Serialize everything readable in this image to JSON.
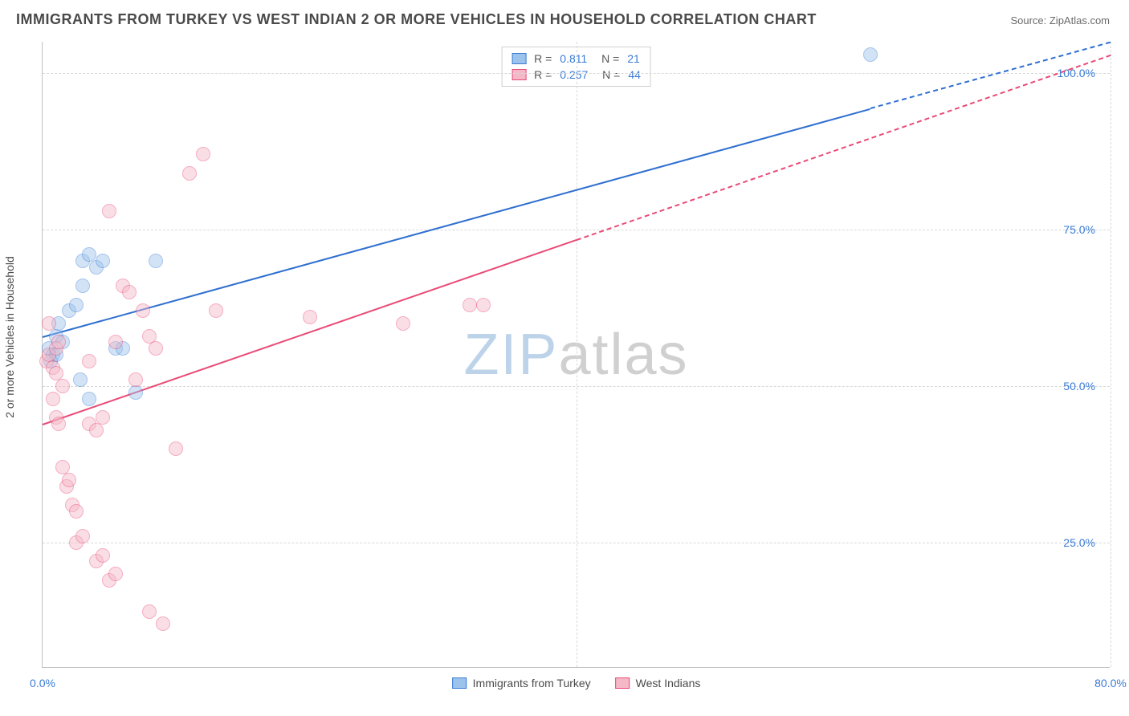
{
  "title": "IMMIGRANTS FROM TURKEY VS WEST INDIAN 2 OR MORE VEHICLES IN HOUSEHOLD CORRELATION CHART",
  "source": "Source: ZipAtlas.com",
  "y_axis_label": "2 or more Vehicles in Household",
  "watermark": {
    "part1": "ZIP",
    "part2": "atlas"
  },
  "chart": {
    "type": "scatter-with-regression",
    "background_color": "#ffffff",
    "grid_color": "#d8d8d8",
    "axis_color": "#c0c0c0",
    "title_fontsize": 18,
    "label_fontsize": 14,
    "tick_fontsize": 14,
    "tick_color": "#3a7bd5",
    "xlim": [
      0,
      80
    ],
    "ylim": [
      5,
      105
    ],
    "xticks": [
      0.0,
      80.0
    ],
    "xtick_labels": [
      "0.0%",
      "80.0%"
    ],
    "yticks": [
      25.0,
      50.0,
      75.0,
      100.0
    ],
    "ytick_labels": [
      "25.0%",
      "50.0%",
      "75.0%",
      "100.0%"
    ],
    "marker_radius": 9,
    "marker_opacity": 0.45,
    "series": [
      {
        "name": "Immigrants from Turkey",
        "color_fill": "#9cc3ec",
        "color_stroke": "#3a7bd5",
        "r": 0.811,
        "n": 21,
        "regression": {
          "x1": 0,
          "y1": 58,
          "x2": 80,
          "y2": 105,
          "color": "#2f6fd0",
          "width": 2,
          "dashed_after_x": 62
        },
        "points": [
          [
            0.5,
            56
          ],
          [
            0.8,
            55
          ],
          [
            1.0,
            58
          ],
          [
            1.2,
            60
          ],
          [
            1.5,
            57
          ],
          [
            0.6,
            54
          ],
          [
            1.0,
            55
          ],
          [
            2.0,
            62
          ],
          [
            2.5,
            63
          ],
          [
            3.0,
            70
          ],
          [
            3.5,
            71
          ],
          [
            4.0,
            69
          ],
          [
            5.5,
            56
          ],
          [
            6.0,
            56
          ],
          [
            7.0,
            49
          ],
          [
            8.5,
            70
          ],
          [
            3.0,
            66
          ],
          [
            2.8,
            51
          ],
          [
            3.5,
            48
          ],
          [
            4.5,
            70
          ],
          [
            62,
            103
          ]
        ]
      },
      {
        "name": "West Indians",
        "color_fill": "#f4b8c6",
        "color_stroke": "#e94b77",
        "r": 0.257,
        "n": 44,
        "regression": {
          "x1": 0,
          "y1": 44,
          "x2": 80,
          "y2": 103,
          "color": "#e94b77",
          "width": 2,
          "dashed_after_x": 40
        },
        "points": [
          [
            0.3,
            54
          ],
          [
            0.5,
            55
          ],
          [
            0.8,
            53
          ],
          [
            1.0,
            52
          ],
          [
            1.0,
            56
          ],
          [
            1.2,
            57
          ],
          [
            1.5,
            50
          ],
          [
            1.5,
            37
          ],
          [
            1.8,
            34
          ],
          [
            2.0,
            35
          ],
          [
            2.2,
            31
          ],
          [
            2.5,
            30
          ],
          [
            1.0,
            45
          ],
          [
            1.2,
            44
          ],
          [
            3.5,
            44
          ],
          [
            4.0,
            43
          ],
          [
            4.5,
            45
          ],
          [
            5.0,
            78
          ],
          [
            5.5,
            57
          ],
          [
            6.0,
            66
          ],
          [
            6.5,
            65
          ],
          [
            7.0,
            51
          ],
          [
            7.5,
            62
          ],
          [
            8.0,
            58
          ],
          [
            8.5,
            56
          ],
          [
            10,
            40
          ],
          [
            11,
            84
          ],
          [
            12,
            87
          ],
          [
            2.5,
            25
          ],
          [
            3.0,
            26
          ],
          [
            4.0,
            22
          ],
          [
            4.5,
            23
          ],
          [
            5.0,
            19
          ],
          [
            5.5,
            20
          ],
          [
            8.0,
            14
          ],
          [
            9.0,
            12
          ],
          [
            13,
            62
          ],
          [
            20,
            61
          ],
          [
            27,
            60
          ],
          [
            32,
            63
          ],
          [
            33,
            63
          ],
          [
            0.5,
            60
          ],
          [
            0.8,
            48
          ],
          [
            3.5,
            54
          ]
        ]
      }
    ]
  },
  "legend_top_labels": {
    "R": "R  =",
    "N": "N  ="
  },
  "legend_bottom": [
    {
      "label": "Immigrants from Turkey",
      "fill": "#9cc3ec",
      "stroke": "#3a7bd5"
    },
    {
      "label": "West Indians",
      "fill": "#f4b8c6",
      "stroke": "#e94b77"
    }
  ]
}
